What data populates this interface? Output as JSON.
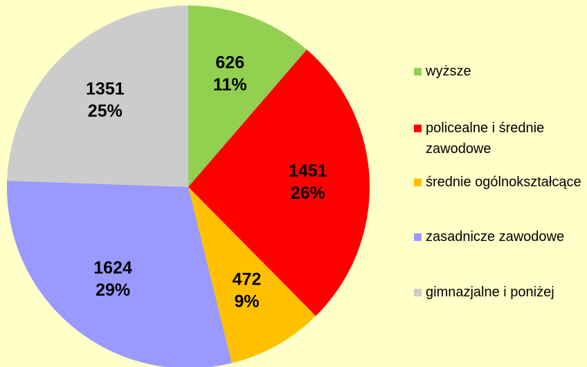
{
  "chart_data": {
    "type": "pie",
    "categories": [
      "wyższe",
      "policealne i średnie zawodowe",
      "średnie ogólnokształcące",
      "zasadnicze zawodowe",
      "gimnazjalne i poniżej"
    ],
    "values": [
      626,
      1451,
      472,
      1624,
      1351
    ],
    "percent_labels": [
      "11%",
      "26%",
      "9%",
      "29%",
      "25%"
    ],
    "colors": [
      "#92d050",
      "#ff0000",
      "#ffc000",
      "#9999ff",
      "#cccccc"
    ],
    "legend": "right"
  }
}
